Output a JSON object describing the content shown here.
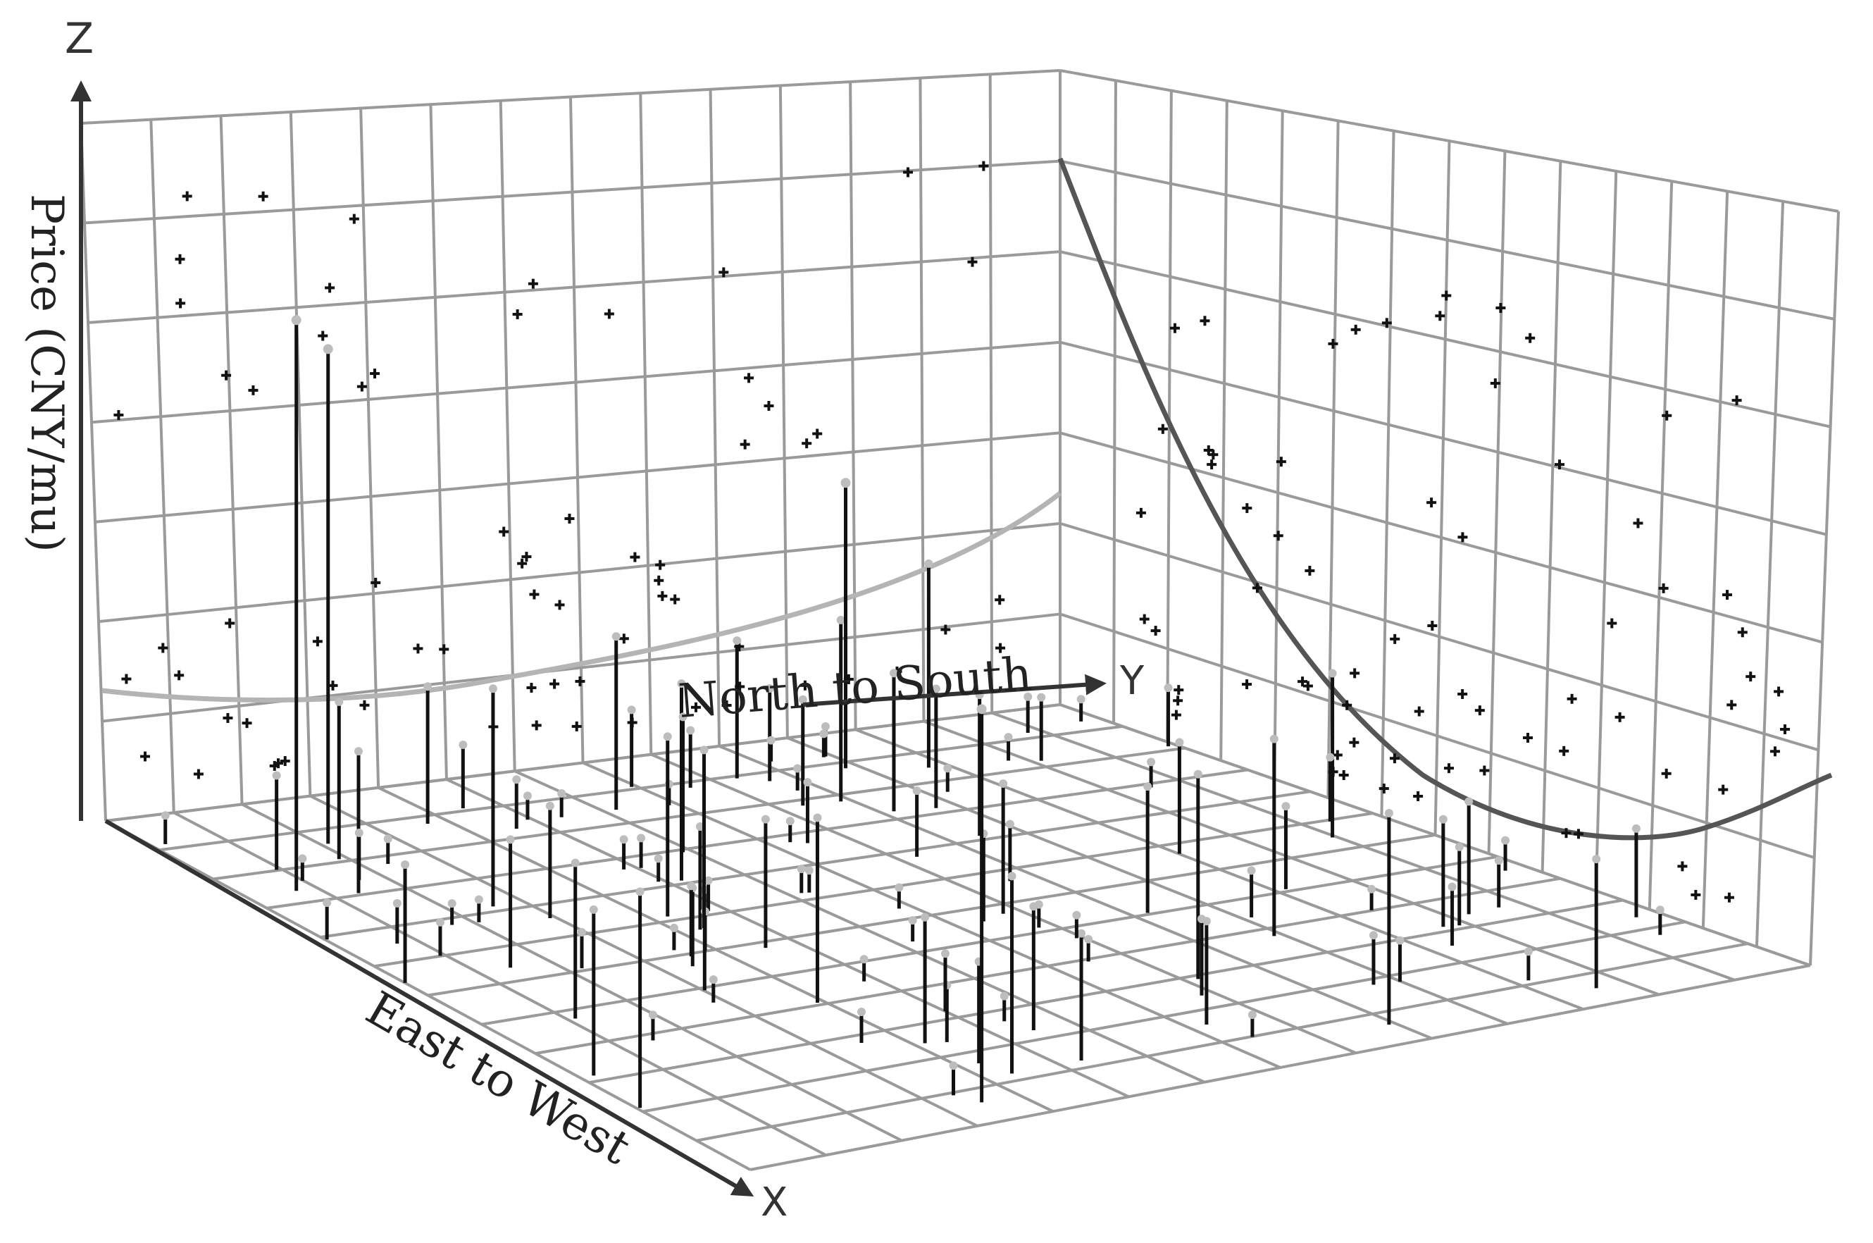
{
  "chart_data": {
    "type": "scatter",
    "subtype": "3d-trend-analysis",
    "title": "",
    "axes": {
      "x": {
        "letter": "X",
        "label": "East to West"
      },
      "y": {
        "letter": "Y",
        "label": "North to South"
      },
      "z": {
        "letter": "Z",
        "label": "Price (CNY/mu)"
      }
    },
    "grid": true,
    "trend_curves": [
      {
        "plane": "XZ (back-left wall)",
        "color": "#b4b4b4",
        "shape": "shallow U, lowest near west, rising toward east"
      },
      {
        "plane": "YZ (back-right wall)",
        "color": "#555555",
        "shape": "U-shaped, high in north, minimum toward south, slight rise at far south"
      }
    ],
    "colors": {
      "stems": "#111111",
      "grid": "#9a9a9a",
      "projected_points": "#111111"
    }
  }
}
